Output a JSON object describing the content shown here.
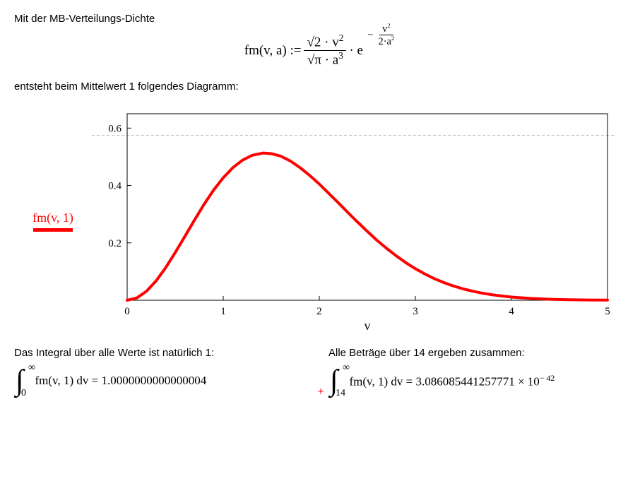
{
  "intro_text": "Mit der MB-Verteilungs-Dichte",
  "formula": {
    "lhs": "fm(v, a) :=",
    "frac_num": "√2 · v",
    "frac_num_exp": "2",
    "frac_den": "√π · a",
    "frac_den_exp": "3",
    "mid": "· e",
    "exp_neg": "−",
    "exp_num": "v",
    "exp_num_exp": "2",
    "exp_den": "2·a",
    "exp_den_exp": "2"
  },
  "diagram_text": "entsteht beim Mittelwert 1 folgendes Diagramm:",
  "legend_label": "fm(v, 1)",
  "chart": {
    "type": "line",
    "xlim": [
      0,
      5
    ],
    "ylim": [
      0,
      0.65
    ],
    "xtick_vals": [
      0,
      1,
      2,
      3,
      4,
      5
    ],
    "ytick_vals": [
      0.2,
      0.4,
      0.6
    ],
    "x_axis_label": "v",
    "dash_y": 0.575,
    "line_color": "#ff0000",
    "line_width": 4,
    "axis_color": "#000000",
    "grid_color": "#bbbbbb",
    "background_color": "#ffffff",
    "tick_font_size": 15,
    "axis_label_font_size": 18,
    "points": [
      [
        0.0,
        0.0
      ],
      [
        0.1,
        0.0079
      ],
      [
        0.2,
        0.031
      ],
      [
        0.3,
        0.067
      ],
      [
        0.4,
        0.113
      ],
      [
        0.5,
        0.166
      ],
      [
        0.6,
        0.222
      ],
      [
        0.7,
        0.279
      ],
      [
        0.8,
        0.334
      ],
      [
        0.9,
        0.384
      ],
      [
        1.0,
        0.427
      ],
      [
        1.1,
        0.462
      ],
      [
        1.2,
        0.488
      ],
      [
        1.3,
        0.505
      ],
      [
        1.4,
        0.512
      ],
      [
        1.414,
        0.513
      ],
      [
        1.5,
        0.511
      ],
      [
        1.6,
        0.502
      ],
      [
        1.7,
        0.485
      ],
      [
        1.8,
        0.462
      ],
      [
        1.9,
        0.435
      ],
      [
        2.0,
        0.405
      ],
      [
        2.1,
        0.372
      ],
      [
        2.2,
        0.339
      ],
      [
        2.3,
        0.305
      ],
      [
        2.4,
        0.272
      ],
      [
        2.5,
        0.24
      ],
      [
        2.6,
        0.209
      ],
      [
        2.7,
        0.181
      ],
      [
        2.8,
        0.155
      ],
      [
        2.9,
        0.131
      ],
      [
        3.0,
        0.11
      ],
      [
        3.1,
        0.0913
      ],
      [
        3.2,
        0.075
      ],
      [
        3.3,
        0.0611
      ],
      [
        3.4,
        0.0493
      ],
      [
        3.5,
        0.0394
      ],
      [
        3.6,
        0.0312
      ],
      [
        3.7,
        0.0245
      ],
      [
        3.8,
        0.019
      ],
      [
        3.9,
        0.0147
      ],
      [
        4.0,
        0.0112
      ],
      [
        4.2,
        0.0064
      ],
      [
        4.4,
        0.0035
      ],
      [
        4.6,
        0.0019
      ],
      [
        4.8,
        0.001
      ],
      [
        5.0,
        0.0005
      ]
    ]
  },
  "col_left_text": "Das Integral über alle Werte ist natürlich 1:",
  "col_right_text": "Alle Beträge über 14 ergeben zusammen:",
  "integral_left": {
    "lower": "0",
    "upper": "∞",
    "expr": "fm(v, 1) dv  =  1.0000000000000004"
  },
  "integral_right": {
    "lower": "14",
    "upper": "∞",
    "expr_pre": "fm(v, 1) dv  =  3.086085441257771 × 10",
    "expr_exp": "− 42"
  },
  "cursor": "+"
}
